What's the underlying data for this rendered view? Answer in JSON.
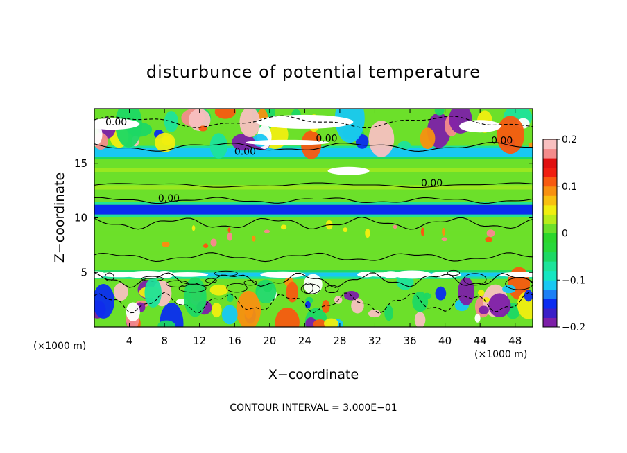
{
  "chart_data": {
    "type": "heatmap",
    "title": "disturbunce of potential temperature",
    "xlabel": "X−coordinate",
    "ylabel": "Z−coordinate",
    "x_unit_left": "(×1000 m)",
    "x_unit_right": "(×1000 m)",
    "footer": "CONTOUR INTERVAL = 3.000E−01",
    "xlim": [
      0,
      50
    ],
    "ylim": [
      0,
      20
    ],
    "x_ticks": [
      4,
      8,
      12,
      16,
      20,
      24,
      28,
      32,
      36,
      40,
      44,
      48
    ],
    "y_ticks": [
      5,
      10,
      15
    ],
    "colorbar": {
      "min": -0.2,
      "max": 0.2,
      "ticks": [
        {
          "value": 0.2,
          "label": "0.2"
        },
        {
          "value": 0.1,
          "label": "0.1"
        },
        {
          "value": 0,
          "label": "0"
        },
        {
          "value": -0.1,
          "label": "−0.1"
        },
        {
          "value": -0.2,
          "label": "−0.2"
        }
      ],
      "colors": [
        "#7d1fa8",
        "#3a1fc8",
        "#0a2cf0",
        "#1c7ff5",
        "#18c8f2",
        "#15e6c2",
        "#1de39a",
        "#1dd864",
        "#28d83a",
        "#2cd62c",
        "#6ce02a",
        "#b8ec1a",
        "#f0ee10",
        "#f8c010",
        "#f89010",
        "#f85a10",
        "#f01e10",
        "#e01010",
        "#f48b8b",
        "#f8c0c0"
      ]
    },
    "contour_labels": [
      {
        "x": 2.5,
        "y": 18.8,
        "text": "0.00"
      },
      {
        "x": 26.5,
        "y": 17.3,
        "text": "0.00"
      },
      {
        "x": 17.2,
        "y": 16.1,
        "text": "0.00"
      },
      {
        "x": 46.5,
        "y": 17.1,
        "text": "0.00"
      },
      {
        "x": 38.5,
        "y": 13.2,
        "text": "0.00"
      },
      {
        "x": 8.5,
        "y": 11.8,
        "text": "0.00"
      }
    ],
    "bands": [
      {
        "z0": 0.0,
        "z1": 4.6,
        "value": "mixed"
      },
      {
        "z0": 4.6,
        "z1": 5.0,
        "value": -0.12
      },
      {
        "z0": 5.0,
        "z1": 10.3,
        "value": 0.0
      },
      {
        "z0": 10.3,
        "z1": 11.2,
        "value": -0.15
      },
      {
        "z0": 11.2,
        "z1": 15.6,
        "value": 0.02
      },
      {
        "z0": 15.6,
        "z1": 16.4,
        "value": -0.12
      },
      {
        "z0": 16.4,
        "z1": 20.0,
        "value": "mixed"
      }
    ]
  }
}
